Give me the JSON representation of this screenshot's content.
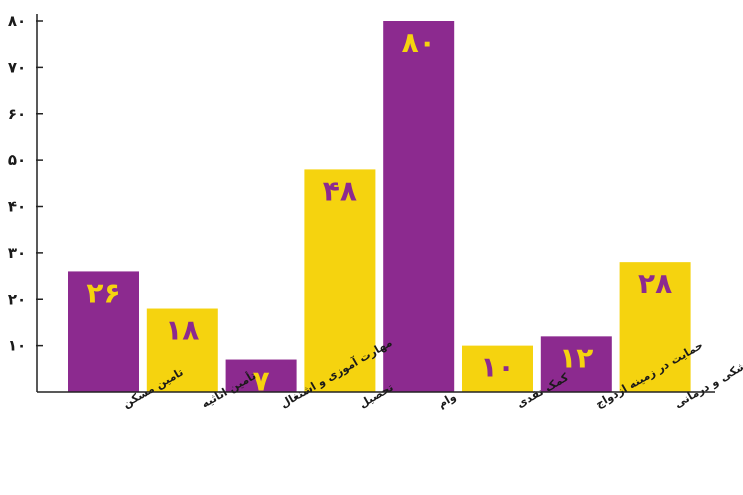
{
  "chart_data": {
    "type": "bar",
    "categories": [
      "تامین مسکن",
      "تأمین اثاثیه",
      "مهارت آموزی و اشتغال",
      "تحصیل",
      "وام",
      "کمک نقدی",
      "حمایت در زمینه ازدواج",
      "خدمات پزشکی و درمانی"
    ],
    "values": [
      26,
      18,
      7,
      48,
      80,
      10,
      12,
      28
    ],
    "value_labels": [
      "۲۶",
      "۱۸",
      "۷",
      "۴۸",
      "۸۰",
      "۱۰",
      "۱۲",
      "۲۸"
    ],
    "bar_colors": [
      "#8c2a8f",
      "#f5d30f",
      "#8c2a8f",
      "#f5d30f",
      "#8c2a8f",
      "#f5d30f",
      "#8c2a8f",
      "#f5d30f"
    ],
    "label_colors": [
      "#f5d30f",
      "#8c2a8f",
      "#f5d30f",
      "#8c2a8f",
      "#f5d30f",
      "#8c2a8f",
      "#f5d30f",
      "#8c2a8f"
    ],
    "yticks": [
      10,
      20,
      30,
      40,
      50,
      60,
      70,
      80
    ],
    "ytick_labels": [
      "۱۰",
      "۲۰",
      "۳۰",
      "۴۰",
      "۵۰",
      "۶۰",
      "۷۰",
      "۸۰"
    ],
    "ylim": [
      0,
      80
    ],
    "title": "",
    "xlabel": "",
    "ylabel": "",
    "grid": false,
    "legend": "none"
  }
}
